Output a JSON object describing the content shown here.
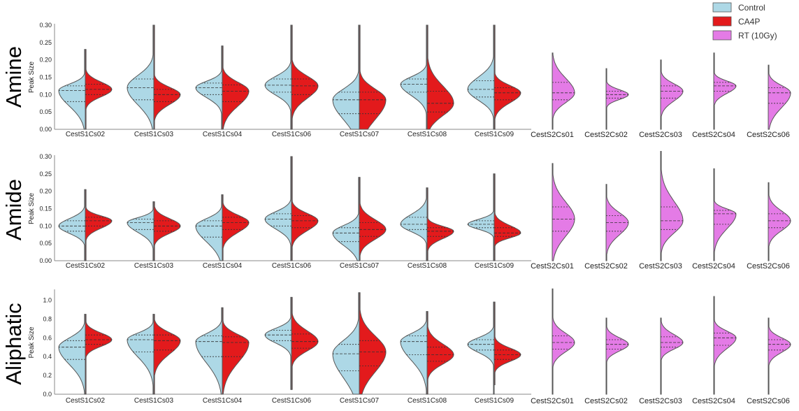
{
  "legend": [
    {
      "label": "Control",
      "color": "#add8e6"
    },
    {
      "label": "CA4P",
      "color": "#e31a1c"
    },
    {
      "label": "RT (10Gy)",
      "color": "#e47be6"
    }
  ],
  "chart_data": [
    {
      "type": "violin",
      "title": "Amine",
      "ylabel": "Peak Size",
      "ylim": [
        0,
        0.3
      ],
      "yticks": [
        "0.00",
        "0.05",
        "0.10",
        "0.15",
        "0.20",
        "0.25",
        "0.30"
      ],
      "categories": [
        "CestS1Cs02",
        "CestS1Cs03",
        "CestS1Cs04",
        "CestS1Cs06",
        "CestS1Cs07",
        "CestS1Cs08",
        "CestS1Cs09",
        "CestS2Cs01",
        "CestS2Cs02",
        "CestS2Cs03",
        "CestS2Cs04",
        "CestS2Cs06"
      ],
      "series": [
        {
          "name": "Control",
          "stats": [
            {
              "min": 0.0,
              "max": 0.23,
              "q1": 0.08,
              "median": 0.112,
              "q3": 0.125
            },
            {
              "min": 0.0,
              "max": 0.3,
              "q1": 0.085,
              "median": 0.12,
              "q3": 0.145
            },
            {
              "min": 0.0,
              "max": 0.24,
              "q1": 0.1,
              "median": 0.12,
              "q3": 0.133
            },
            {
              "min": 0.0,
              "max": 0.3,
              "q1": 0.107,
              "median": 0.127,
              "q3": 0.145
            },
            {
              "min": 0.0,
              "max": 0.3,
              "q1": 0.045,
              "median": 0.085,
              "q3": 0.107
            },
            {
              "min": 0.0,
              "max": 0.3,
              "q1": 0.107,
              "median": 0.13,
              "q3": 0.145
            },
            {
              "min": 0.0,
              "max": 0.3,
              "q1": 0.093,
              "median": 0.115,
              "q3": 0.14
            }
          ]
        },
        {
          "name": "CA4P",
          "stats": [
            {
              "min": 0.0,
              "max": 0.23,
              "q1": 0.1,
              "median": 0.115,
              "q3": 0.13
            },
            {
              "min": 0.0,
              "max": 0.3,
              "q1": 0.08,
              "median": 0.1,
              "q3": 0.115
            },
            {
              "min": 0.0,
              "max": 0.24,
              "q1": 0.08,
              "median": 0.11,
              "q3": 0.128
            },
            {
              "min": 0.0,
              "max": 0.3,
              "q1": 0.1,
              "median": 0.125,
              "q3": 0.145
            },
            {
              "min": 0.0,
              "max": 0.3,
              "q1": 0.045,
              "median": 0.085,
              "q3": 0.107
            },
            {
              "min": 0.0,
              "max": 0.3,
              "q1": 0.05,
              "median": 0.075,
              "q3": 0.11
            },
            {
              "min": 0.0,
              "max": 0.3,
              "q1": 0.085,
              "median": 0.105,
              "q3": 0.12
            }
          ]
        },
        {
          "name": "RT (10Gy)",
          "stats": [
            {
              "min": 0.0,
              "max": 0.22,
              "q1": 0.085,
              "median": 0.105,
              "q3": 0.135
            },
            {
              "min": 0.0,
              "max": 0.175,
              "q1": 0.09,
              "median": 0.1,
              "q3": 0.11
            },
            {
              "min": 0.0,
              "max": 0.2,
              "q1": 0.09,
              "median": 0.11,
              "q3": 0.125
            },
            {
              "min": 0.0,
              "max": 0.22,
              "q1": 0.11,
              "median": 0.125,
              "q3": 0.135
            },
            {
              "min": 0.0,
              "max": 0.185,
              "q1": 0.075,
              "median": 0.105,
              "q3": 0.12
            }
          ]
        }
      ]
    },
    {
      "type": "violin",
      "title": "Amide",
      "ylabel": "Peak Size",
      "ylim": [
        0,
        0.3
      ],
      "yticks": [
        "0.00",
        "0.05",
        "0.10",
        "0.15",
        "0.20",
        "0.25",
        "0.30"
      ],
      "categories": [
        "CestS1Cs02",
        "CestS1Cs03",
        "CestS1Cs04",
        "CestS1Cs06",
        "CestS1Cs07",
        "CestS1Cs08",
        "CestS1Cs09",
        "CestS2Cs01",
        "CestS2Cs02",
        "CestS2Cs03",
        "CestS2Cs04",
        "CestS2Cs06"
      ],
      "series": [
        {
          "name": "Control",
          "stats": [
            {
              "min": 0.0,
              "max": 0.205,
              "q1": 0.085,
              "median": 0.1,
              "q3": 0.115
            },
            {
              "min": 0.0,
              "max": 0.17,
              "q1": 0.09,
              "median": 0.11,
              "q3": 0.12
            },
            {
              "min": 0.0,
              "max": 0.19,
              "q1": 0.068,
              "median": 0.1,
              "q3": 0.115
            },
            {
              "min": 0.0,
              "max": 0.3,
              "q1": 0.1,
              "median": 0.12,
              "q3": 0.135
            },
            {
              "min": 0.0,
              "max": 0.24,
              "q1": 0.055,
              "median": 0.08,
              "q3": 0.095
            },
            {
              "min": 0.0,
              "max": 0.21,
              "q1": 0.09,
              "median": 0.105,
              "q3": 0.125
            },
            {
              "min": 0.0,
              "max": 0.25,
              "q1": 0.095,
              "median": 0.105,
              "q3": 0.115
            }
          ]
        },
        {
          "name": "CA4P",
          "stats": [
            {
              "min": 0.0,
              "max": 0.205,
              "q1": 0.1,
              "median": 0.115,
              "q3": 0.125
            },
            {
              "min": 0.0,
              "max": 0.17,
              "q1": 0.085,
              "median": 0.1,
              "q3": 0.115
            },
            {
              "min": 0.0,
              "max": 0.19,
              "q1": 0.09,
              "median": 0.11,
              "q3": 0.125
            },
            {
              "min": 0.0,
              "max": 0.3,
              "q1": 0.095,
              "median": 0.115,
              "q3": 0.13
            },
            {
              "min": 0.0,
              "max": 0.24,
              "q1": 0.07,
              "median": 0.09,
              "q3": 0.11
            },
            {
              "min": 0.0,
              "max": 0.21,
              "q1": 0.07,
              "median": 0.085,
              "q3": 0.095
            },
            {
              "min": 0.0,
              "max": 0.25,
              "q1": 0.07,
              "median": 0.08,
              "q3": 0.095
            }
          ]
        },
        {
          "name": "RT (10Gy)",
          "stats": [
            {
              "min": 0.0,
              "max": 0.28,
              "q1": 0.085,
              "median": 0.12,
              "q3": 0.155
            },
            {
              "min": 0.0,
              "max": 0.22,
              "q1": 0.085,
              "median": 0.11,
              "q3": 0.13
            },
            {
              "min": 0.0,
              "max": 0.315,
              "q1": 0.09,
              "median": 0.115,
              "q3": 0.155
            },
            {
              "min": 0.0,
              "max": 0.265,
              "q1": 0.105,
              "median": 0.135,
              "q3": 0.145
            },
            {
              "min": 0.0,
              "max": 0.225,
              "q1": 0.095,
              "median": 0.115,
              "q3": 0.135
            }
          ]
        }
      ]
    },
    {
      "type": "violin",
      "title": "Aliphatic",
      "ylabel": "Peak Size",
      "ylim": [
        0,
        1.1
      ],
      "yticks": [
        "0.0",
        "0.2",
        "0.4",
        "0.6",
        "0.8",
        "1.0"
      ],
      "categories": [
        "CestS1Cs02",
        "CestS1Cs03",
        "CestS1Cs04",
        "CestS1Cs06",
        "CestS1Cs07",
        "CestS1Cs08",
        "CestS1Cs09",
        "CestS2Cs01",
        "CestS2Cs02",
        "CestS2Cs03",
        "CestS2Cs04",
        "CestS2Cs06"
      ],
      "series": [
        {
          "name": "Control",
          "stats": [
            {
              "min": 0.0,
              "max": 0.85,
              "q1": 0.37,
              "median": 0.5,
              "q3": 0.57
            },
            {
              "min": 0.0,
              "max": 0.85,
              "q1": 0.45,
              "median": 0.58,
              "q3": 0.63
            },
            {
              "min": 0.0,
              "max": 0.92,
              "q1": 0.4,
              "median": 0.56,
              "q3": 0.62
            },
            {
              "min": 0.05,
              "max": 1.03,
              "q1": 0.57,
              "median": 0.63,
              "q3": 0.68
            },
            {
              "min": 0.0,
              "max": 1.08,
              "q1": 0.25,
              "median": 0.43,
              "q3": 0.53
            },
            {
              "min": 0.0,
              "max": 0.88,
              "q1": 0.42,
              "median": 0.56,
              "q3": 0.62
            },
            {
              "min": 0.0,
              "max": 0.98,
              "q1": 0.47,
              "median": 0.53,
              "q3": 0.58
            }
          ]
        },
        {
          "name": "CA4P",
          "stats": [
            {
              "min": 0.0,
              "max": 0.85,
              "q1": 0.53,
              "median": 0.58,
              "q3": 0.63
            },
            {
              "min": 0.0,
              "max": 0.85,
              "q1": 0.47,
              "median": 0.57,
              "q3": 0.63
            },
            {
              "min": 0.0,
              "max": 0.92,
              "q1": 0.4,
              "median": 0.55,
              "q3": 0.61
            },
            {
              "min": 0.05,
              "max": 1.03,
              "q1": 0.49,
              "median": 0.56,
              "q3": 0.64
            },
            {
              "min": 0.0,
              "max": 1.08,
              "q1": 0.3,
              "median": 0.45,
              "q3": 0.57
            },
            {
              "min": 0.0,
              "max": 0.88,
              "q1": 0.35,
              "median": 0.42,
              "q3": 0.5
            },
            {
              "min": 0.1,
              "max": 0.98,
              "q1": 0.37,
              "median": 0.42,
              "q3": 0.47
            }
          ]
        },
        {
          "name": "RT (10Gy)",
          "stats": [
            {
              "min": 0.0,
              "max": 1.12,
              "q1": 0.48,
              "median": 0.55,
              "q3": 0.62
            },
            {
              "min": 0.0,
              "max": 0.81,
              "q1": 0.48,
              "median": 0.53,
              "q3": 0.58
            },
            {
              "min": 0.0,
              "max": 0.81,
              "q1": 0.5,
              "median": 0.55,
              "q3": 0.61
            },
            {
              "min": 0.0,
              "max": 1.04,
              "q1": 0.52,
              "median": 0.6,
              "q3": 0.65
            },
            {
              "min": 0.0,
              "max": 0.81,
              "q1": 0.47,
              "median": 0.53,
              "q3": 0.58
            }
          ]
        }
      ]
    }
  ]
}
